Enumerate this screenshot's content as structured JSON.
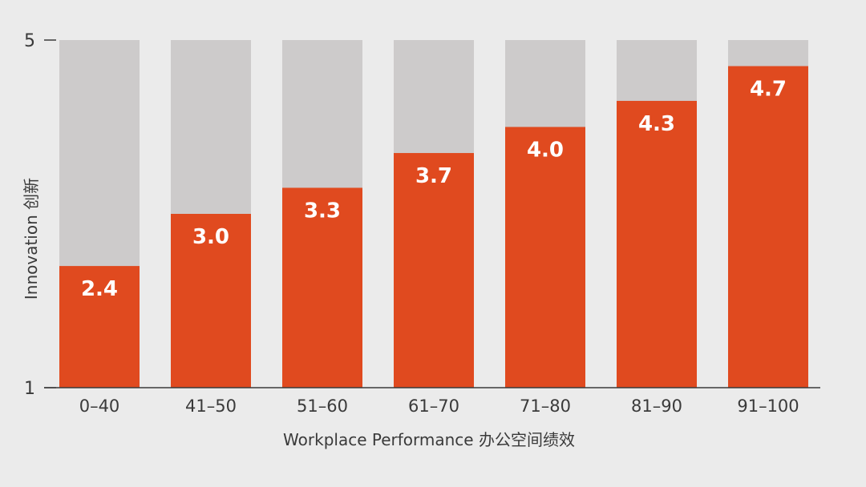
{
  "chart_data": {
    "type": "bar",
    "categories": [
      "0–40",
      "41–50",
      "51–60",
      "61–70",
      "71–80",
      "81–90",
      "91–100"
    ],
    "values": [
      2.4,
      3.0,
      3.3,
      3.7,
      4.0,
      4.3,
      4.7
    ],
    "value_labels": [
      "2.4",
      "3.0",
      "3.3",
      "3.7",
      "4.0",
      "4.3",
      "4.7"
    ],
    "ylim": [
      1,
      5
    ],
    "yticks": [
      "1",
      "5"
    ],
    "xlabel": "Workplace Performance 办公空间绩效",
    "ylabel": "Innovation 创新",
    "grid": false,
    "colors": {
      "bar": "#e04a1f",
      "track": "#cdcbcb",
      "background": "#ebebeb",
      "axis": "#3a3a3a",
      "label": "#ffffff"
    }
  }
}
